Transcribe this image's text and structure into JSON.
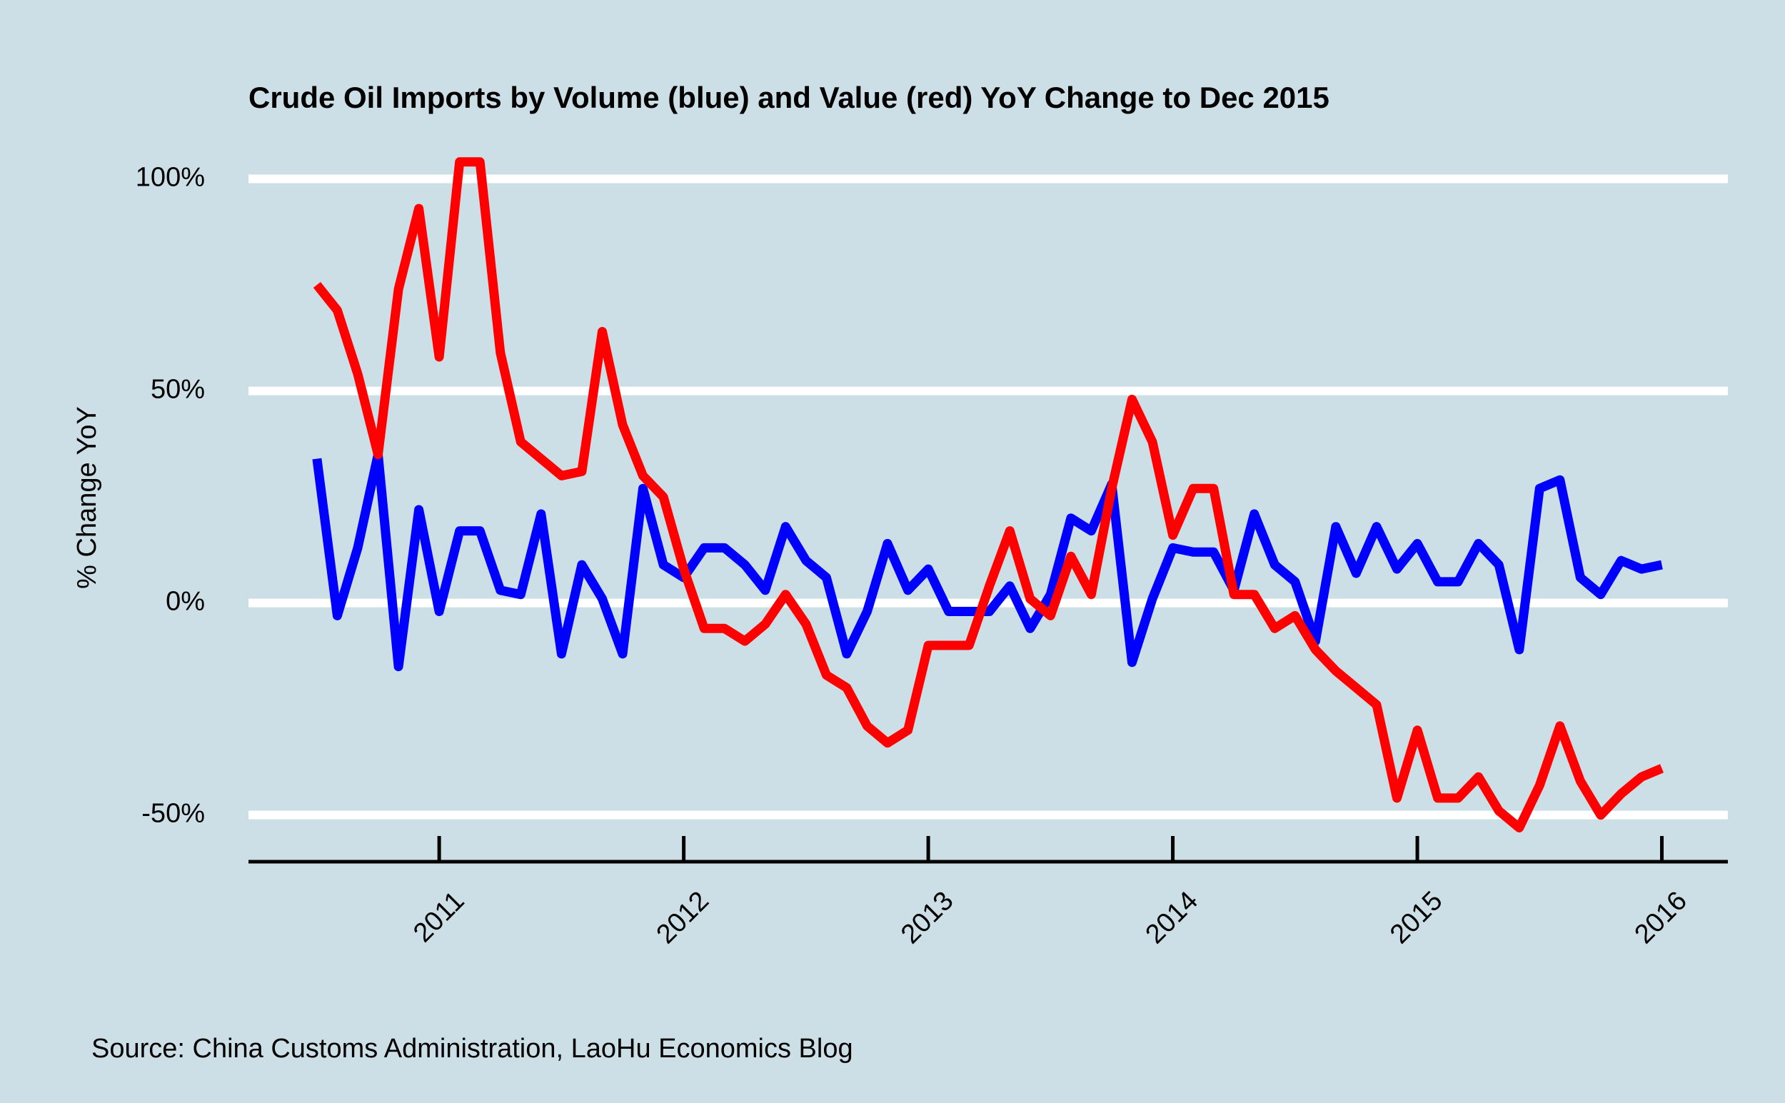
{
  "chart_data": {
    "type": "line",
    "title": "Crude Oil Imports by Volume (blue) and Value (red) YoY Change to Dec 2015",
    "y_label": "% Change YoY",
    "source": "Source: China Customs Administration, LaoHu Economics Blog",
    "x": [
      "2010-07",
      "2010-08",
      "2010-09",
      "2010-10",
      "2010-11",
      "2010-12",
      "2011-01",
      "2011-02",
      "2011-03",
      "2011-04",
      "2011-05",
      "2011-06",
      "2011-07",
      "2011-08",
      "2011-09",
      "2011-10",
      "2011-11",
      "2011-12",
      "2012-01",
      "2012-02",
      "2012-03",
      "2012-04",
      "2012-05",
      "2012-06",
      "2012-07",
      "2012-08",
      "2012-09",
      "2012-10",
      "2012-11",
      "2012-12",
      "2013-01",
      "2013-02",
      "2013-03",
      "2013-04",
      "2013-05",
      "2013-06",
      "2013-07",
      "2013-08",
      "2013-09",
      "2013-10",
      "2013-11",
      "2013-12",
      "2014-01",
      "2014-02",
      "2014-03",
      "2014-04",
      "2014-05",
      "2014-06",
      "2014-07",
      "2014-08",
      "2014-09",
      "2014-10",
      "2014-11",
      "2014-12",
      "2015-01",
      "2015-02",
      "2015-03",
      "2015-04",
      "2015-05",
      "2015-06",
      "2015-07",
      "2015-08",
      "2015-09",
      "2015-10",
      "2015-11",
      "2015-12",
      "2016-01"
    ],
    "series": [
      {
        "color": "#0000ff",
        "values": [
          34,
          -3,
          13,
          35,
          -15,
          22,
          -2,
          17,
          17,
          3,
          2,
          21,
          -12,
          9,
          1,
          -12,
          27,
          9,
          6,
          13,
          13,
          9,
          3,
          18,
          10,
          6,
          -12,
          -2,
          14,
          3,
          8,
          -2,
          -2,
          -2,
          4,
          -6,
          2,
          20,
          17,
          28,
          -14,
          1,
          13,
          12,
          12,
          3,
          21,
          9,
          5,
          -9,
          18,
          7,
          18,
          8,
          14,
          5,
          5,
          14,
          9,
          -11,
          27,
          29,
          6,
          2,
          10,
          8,
          9
        ]
      },
      {
        "color": "#ff0000",
        "values": [
          75,
          69,
          54,
          35,
          74,
          93,
          58,
          104,
          104,
          59,
          38,
          34,
          30,
          31,
          64,
          42,
          30,
          25,
          8,
          -6,
          -6,
          -9,
          -5,
          2,
          -5,
          -17,
          -20,
          -29,
          -33,
          -30,
          -10,
          -10,
          -10,
          4,
          17,
          1,
          -3,
          11,
          2,
          27,
          48,
          38,
          16,
          27,
          27,
          2,
          2,
          -6,
          -3,
          -11,
          -16,
          -20,
          -24,
          -46,
          -30,
          -46,
          -46,
          -41,
          -49,
          -53,
          -43,
          -29,
          -42,
          -50,
          -45,
          -41,
          -39
        ]
      }
    ],
    "xlim": [
      2010.22,
      2016.27
    ],
    "xticks": [
      2011,
      2012,
      2013,
      2014,
      2015,
      2016
    ],
    "ylim": [
      -61,
      108
    ],
    "yticks": [
      {
        "value": -50,
        "label": "-50%"
      },
      {
        "value": 0,
        "label": "0%"
      },
      {
        "value": 50,
        "label": "50%"
      },
      {
        "value": 100,
        "label": "100%"
      }
    ],
    "grid": true
  }
}
